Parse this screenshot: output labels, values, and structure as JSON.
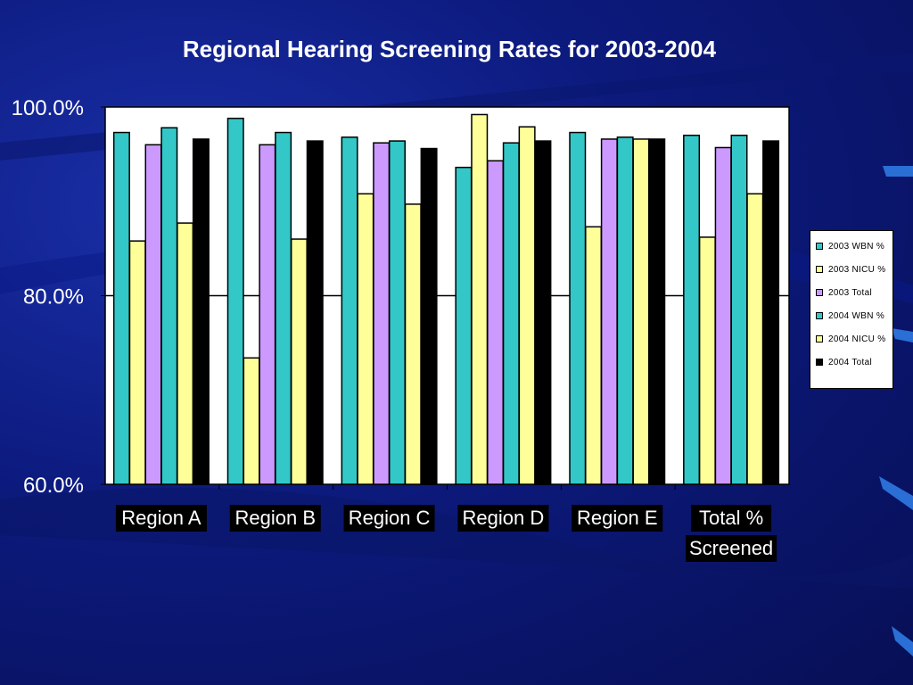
{
  "chart_data": {
    "type": "bar",
    "title": "Regional Hearing Screening Rates for 2003-2004",
    "xlabel": "",
    "ylabel": "",
    "ylim": [
      60,
      100
    ],
    "y_ticks": [
      "100.0%",
      "80.0%",
      "60.0%"
    ],
    "y_tick_values": [
      100,
      80,
      60
    ],
    "grid": "horizontal at 80.0%",
    "legend_position": "right",
    "categories": [
      "Region A",
      "Region B",
      "Region C",
      "Region D",
      "Region E",
      "Total % Screened"
    ],
    "category_lines": [
      [
        "Region A"
      ],
      [
        "Region B"
      ],
      [
        "Region C"
      ],
      [
        "Region D"
      ],
      [
        "Region E"
      ],
      [
        "Total %",
        "Screened"
      ]
    ],
    "series": [
      {
        "name": "2003 WBN %",
        "color": "#33c7c7",
        "values": [
          97.3,
          98.8,
          96.8,
          93.6,
          97.3,
          97.0
        ]
      },
      {
        "name": "2003 NICU %",
        "color": "#ffff99",
        "values": [
          85.8,
          73.4,
          90.8,
          99.2,
          87.3,
          86.2
        ]
      },
      {
        "name": "2003 Total",
        "color": "#cc99ff",
        "values": [
          96.0,
          96.0,
          96.2,
          94.3,
          96.6,
          95.7
        ]
      },
      {
        "name": "2004 WBN %",
        "color": "#33c7c7",
        "values": [
          97.8,
          97.3,
          96.4,
          96.2,
          96.8,
          97.0
        ]
      },
      {
        "name": "2004 NICU %",
        "color": "#ffff99",
        "values": [
          87.7,
          86.0,
          89.7,
          97.9,
          96.6,
          90.8
        ]
      },
      {
        "name": "2004 Total",
        "color": "#000000",
        "values": [
          96.6,
          96.4,
          95.6,
          96.4,
          96.6,
          96.4
        ]
      }
    ]
  }
}
